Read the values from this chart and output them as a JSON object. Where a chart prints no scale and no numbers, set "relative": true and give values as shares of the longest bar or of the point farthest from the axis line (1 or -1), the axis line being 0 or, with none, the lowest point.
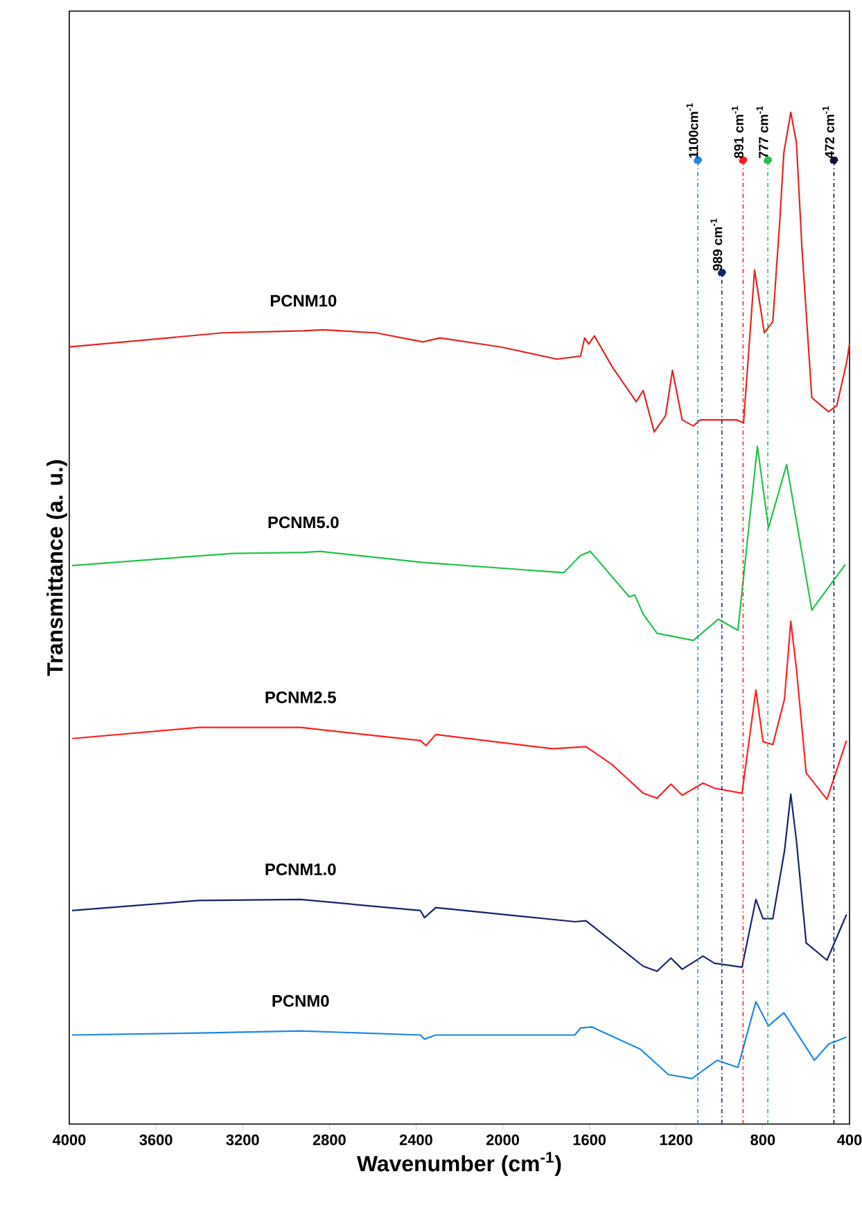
{
  "chart_data": {
    "type": "line",
    "relative": true,
    "xlabel": "Wavenumber (cm$^{-1}$)",
    "ylabel": "Transmittance (a. u.)",
    "xlim": [
      4000,
      400
    ],
    "xticks": [
      4000,
      3600,
      3200,
      2800,
      2400,
      2000,
      1600,
      1200,
      800,
      400
    ],
    "tick_labels": "x",
    "grid": false,
    "legend": false,
    "marker": "none",
    "line_style": "solid",
    "series": [
      {
        "name": "PCNM10",
        "color": "#e52421",
        "x": [
          4000,
          3293,
          2920,
          2830,
          2586,
          2368,
          2290,
          2008,
          1751,
          1641,
          1622,
          1603,
          1577,
          1494,
          1384,
          1352,
          1301,
          1249,
          1217,
          1172,
          1121,
          1089,
          922,
          889,
          838,
          793,
          754,
          722,
          703,
          671,
          645,
          619,
          574,
          497,
          459,
          414,
          400
        ],
        "values": [
          0.768,
          0.782,
          0.784,
          0.785,
          0.782,
          0.773,
          0.777,
          0.768,
          0.756,
          0.759,
          0.777,
          0.771,
          0.779,
          0.748,
          0.714,
          0.725,
          0.684,
          0.7,
          0.745,
          0.696,
          0.69,
          0.696,
          0.696,
          0.693,
          0.844,
          0.782,
          0.793,
          0.892,
          0.96,
          1,
          0.97,
          0.864,
          0.718,
          0.704,
          0.71,
          0.752,
          0.771
        ]
      },
      {
        "name": "PCNM5.0",
        "color": "#22c24a",
        "x": [
          3987,
          3248,
          2920,
          2843,
          2368,
          1718,
          1641,
          1596,
          1416,
          1391,
          1352,
          1288,
          1121,
          1005,
          915,
          825,
          774,
          690,
          574,
          420
        ],
        "values": [
          0.552,
          0.564,
          0.565,
          0.566,
          0.555,
          0.545,
          0.562,
          0.566,
          0.521,
          0.523,
          0.504,
          0.485,
          0.478,
          0.499,
          0.488,
          0.67,
          0.589,
          0.652,
          0.508,
          0.553
        ]
      },
      {
        "name": "PCNM2.5",
        "color": "#ff2020",
        "x": [
          3987,
          3402,
          2933,
          2380,
          2354,
          2309,
          1770,
          1616,
          1494,
          1352,
          1288,
          1224,
          1172,
          1076,
          1024,
          896,
          832,
          799,
          754,
          700,
          671,
          645,
          600,
          504,
          414
        ],
        "values": [
          0.381,
          0.392,
          0.392,
          0.379,
          0.374,
          0.385,
          0.371,
          0.373,
          0.355,
          0.327,
          0.322,
          0.336,
          0.325,
          0.337,
          0.332,
          0.327,
          0.429,
          0.378,
          0.375,
          0.42,
          0.497,
          0.45,
          0.347,
          0.321,
          0.379
        ]
      },
      {
        "name": "PCNM1.0",
        "color": "#14256b",
        "x": [
          3987,
          3402,
          2933,
          2380,
          2361,
          2309,
          1667,
          1616,
          1352,
          1288,
          1224,
          1172,
          1076,
          1024,
          896,
          832,
          799,
          754,
          700,
          671,
          645,
          600,
          504,
          414
        ],
        "values": [
          0.211,
          0.221,
          0.222,
          0.211,
          0.204,
          0.214,
          0.2,
          0.201,
          0.156,
          0.151,
          0.164,
          0.153,
          0.166,
          0.159,
          0.155,
          0.222,
          0.203,
          0.203,
          0.27,
          0.326,
          0.28,
          0.179,
          0.162,
          0.207
        ]
      },
      {
        "name": "PCNM0",
        "color": "#1e88e5",
        "x": [
          3987,
          3402,
          2933,
          2380,
          2361,
          2309,
          1667,
          1641,
          1590,
          1365,
          1236,
          1127,
          1011,
          915,
          832,
          774,
          703,
          562,
          497,
          414
        ],
        "values": [
          0.088,
          0.09,
          0.092,
          0.088,
          0.084,
          0.088,
          0.088,
          0.095,
          0.096,
          0.074,
          0.049,
          0.045,
          0.063,
          0.056,
          0.121,
          0.097,
          0.11,
          0.063,
          0.079,
          0.086
        ]
      }
    ],
    "ref_lines": [
      {
        "axis": "x",
        "value": 1100,
        "label": "1100cm$^{-1}$",
        "color": "#1e88e5",
        "line_style": "dashdot"
      },
      {
        "axis": "x",
        "value": 989,
        "label": "989 cm$^{-1}$",
        "color": "#14256b",
        "line_style": "dashdot"
      },
      {
        "axis": "x",
        "value": 891,
        "label": "891 cm$^{-1}$",
        "color": "#ff2020",
        "line_style": "dashdot"
      },
      {
        "axis": "x",
        "value": 777,
        "label": "777 cm$^{-1}$",
        "color": "#22c24a",
        "line_style": "dashdot"
      },
      {
        "axis": "x",
        "value": 472,
        "label": "472 cm$^{-1}$",
        "color": "#111133",
        "line_style": "dashdot"
      }
    ]
  }
}
